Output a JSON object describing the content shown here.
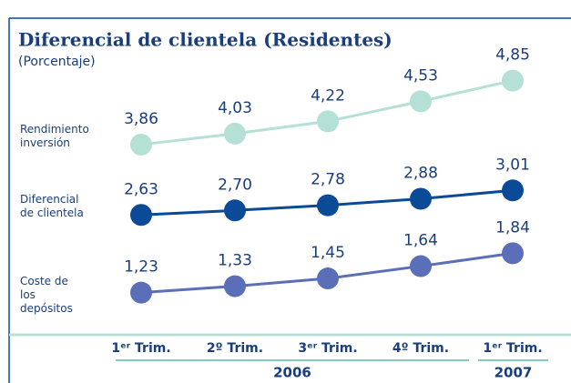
{
  "chart_data": {
    "type": "line",
    "title": "Diferencial de clientela (Residentes)",
    "subtitle": "(Porcentaje)",
    "categories": [
      "1ᵉʳ Trim.",
      "2º Trim.",
      "3ᵉʳ Trim.",
      "4º Trim.",
      "1ᵉʳ Trim."
    ],
    "years": [
      "2006",
      "2007"
    ],
    "series": [
      {
        "name": "Rendimiento inversión",
        "color": "#b5e0d6",
        "values": [
          3.86,
          4.03,
          4.22,
          4.53,
          4.85
        ],
        "value_labels": [
          "3,86",
          "4,03",
          "4,22",
          "4,53",
          "4,85"
        ]
      },
      {
        "name": "Diferencial de clientela",
        "color": "#0b4a97",
        "values": [
          2.63,
          2.7,
          2.78,
          2.88,
          3.01
        ],
        "value_labels": [
          "2,63",
          "2,70",
          "2,78",
          "2,88",
          "3,01"
        ]
      },
      {
        "name": "Coste de los depósitos",
        "color": "#5b6fb9",
        "values": [
          1.23,
          1.33,
          1.45,
          1.64,
          1.84
        ],
        "value_labels": [
          "1,23",
          "1,33",
          "1,45",
          "1,64",
          "1,84"
        ]
      }
    ]
  }
}
